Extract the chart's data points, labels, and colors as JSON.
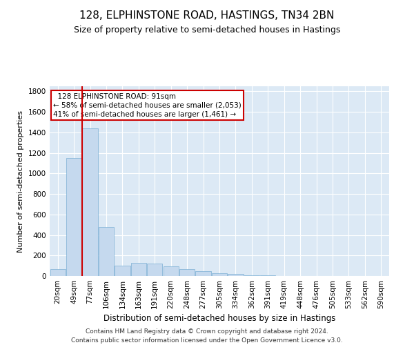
{
  "title": "128, ELPHINSTONE ROAD, HASTINGS, TN34 2BN",
  "subtitle": "Size of property relative to semi-detached houses in Hastings",
  "xlabel": "Distribution of semi-detached houses by size in Hastings",
  "ylabel": "Number of semi-detached properties",
  "footer_line1": "Contains HM Land Registry data © Crown copyright and database right 2024.",
  "footer_line2": "Contains public sector information licensed under the Open Government Licence v3.0.",
  "bar_labels": [
    "20sqm",
    "49sqm",
    "77sqm",
    "106sqm",
    "134sqm",
    "163sqm",
    "191sqm",
    "220sqm",
    "248sqm",
    "277sqm",
    "305sqm",
    "334sqm",
    "362sqm",
    "391sqm",
    "419sqm",
    "448sqm",
    "476sqm",
    "505sqm",
    "533sqm",
    "562sqm",
    "590sqm"
  ],
  "bar_values": [
    70,
    1150,
    1440,
    480,
    100,
    130,
    120,
    95,
    65,
    50,
    28,
    18,
    10,
    8,
    0,
    0,
    0,
    0,
    0,
    0,
    0
  ],
  "bar_color": "#c5d9ee",
  "bar_edge_color": "#7aafd4",
  "vline_pos": 2.0,
  "vline_color": "#cc0000",
  "annotation_line1": "128 ELPHINSTONE ROAD: 91sqm",
  "annotation_line2": "← 58% of semi-detached houses are smaller (2,053)",
  "annotation_line3": "41% of semi-detached houses are larger (1,461) →",
  "annotation_box_color": "#cc0000",
  "ylim": [
    0,
    1850
  ],
  "yticks": [
    0,
    200,
    400,
    600,
    800,
    1000,
    1200,
    1400,
    1600,
    1800
  ],
  "grid_color": "#ffffff",
  "bg_color": "#dce9f5",
  "title_fontsize": 11,
  "subtitle_fontsize": 9,
  "xlabel_fontsize": 8.5,
  "ylabel_fontsize": 8,
  "tick_fontsize": 7.5,
  "annotation_fontsize": 7.5,
  "footer_fontsize": 6.5
}
